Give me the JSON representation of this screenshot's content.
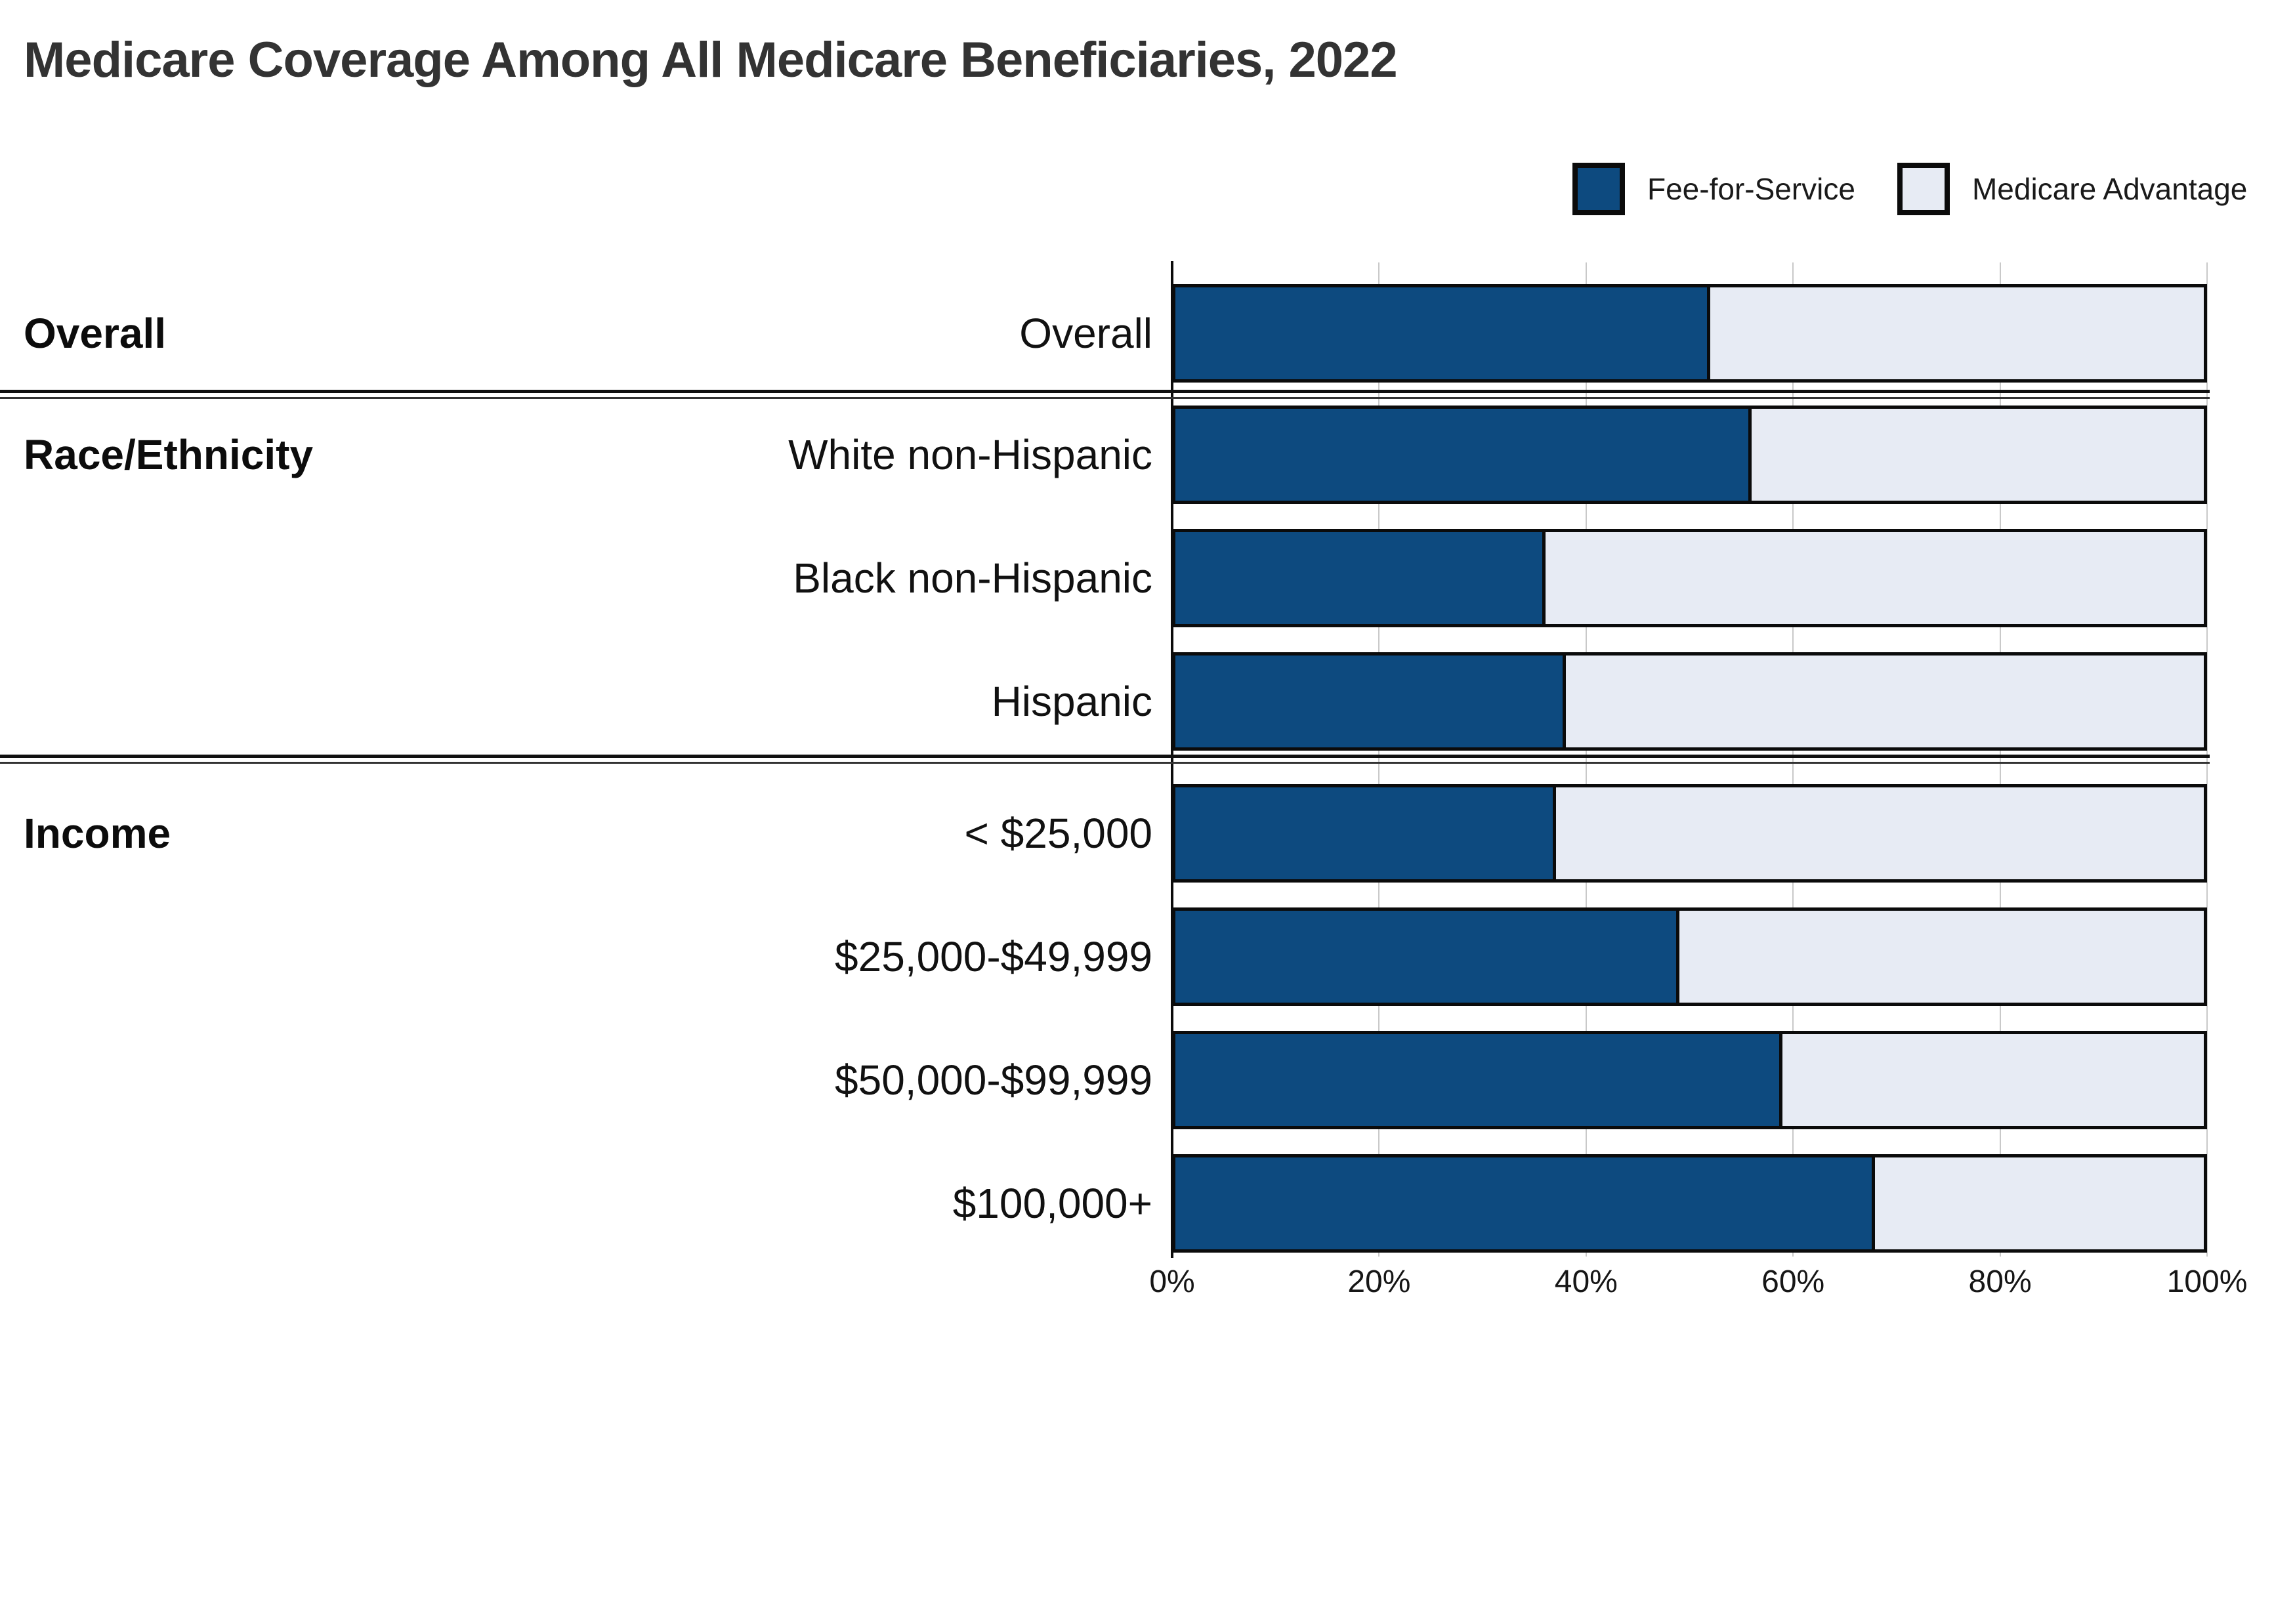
{
  "title": "Medicare Coverage Among All Medicare Beneficiaries, 2022",
  "legend": [
    {
      "label": "Fee-for-Service",
      "color": "#0D4A7F"
    },
    {
      "label": "Medicare Advantage",
      "color": "#E7EBF4"
    }
  ],
  "colors": {
    "fee_for_service": "#0D4A7F",
    "medicare_advantage": "#E7EBF4",
    "bar_border": "#0B0B0B",
    "gridline": "#C9C9C9",
    "title_text": "#333333"
  },
  "chart_data": {
    "type": "bar",
    "orientation": "horizontal",
    "stacked": true,
    "title": "Medicare Coverage Among All Medicare Beneficiaries, 2022",
    "unit": "%",
    "xlim": [
      0,
      100
    ],
    "x_tick_labels": [
      "0%",
      "20%",
      "40%",
      "60%",
      "80%",
      "100%"
    ],
    "grid": "vertical",
    "legend_position": "top-right",
    "categories": [
      "Overall",
      "White non-Hispanic",
      "Black non-Hispanic",
      "Hispanic",
      "< $25,000",
      "$25,000-$49,999",
      "$50,000-$99,999",
      "$100,000+"
    ],
    "series": [
      {
        "name": "Fee-for-Service",
        "values": [
          52,
          56,
          36,
          38,
          37,
          49,
          59,
          68
        ]
      },
      {
        "name": "Medicare Advantage",
        "values": [
          48,
          44,
          64,
          62,
          63,
          51,
          41,
          32
        ]
      }
    ],
    "sections": [
      {
        "header": "Overall",
        "rows": [
          {
            "label": "Overall",
            "fee_for_service": 52,
            "medicare_advantage": 48
          }
        ]
      },
      {
        "header": "Race/Ethnicity",
        "rows": [
          {
            "label": "White non-Hispanic",
            "fee_for_service": 56,
            "medicare_advantage": 44
          },
          {
            "label": "Black non-Hispanic",
            "fee_for_service": 36,
            "medicare_advantage": 64
          },
          {
            "label": "Hispanic",
            "fee_for_service": 38,
            "medicare_advantage": 62
          }
        ]
      },
      {
        "header": "Income",
        "rows": [
          {
            "label": "< $25,000",
            "fee_for_service": 37,
            "medicare_advantage": 63
          },
          {
            "label": "$25,000-$49,999",
            "fee_for_service": 49,
            "medicare_advantage": 51
          },
          {
            "label": "$50,000-$99,999",
            "fee_for_service": 59,
            "medicare_advantage": 41
          },
          {
            "label": "$100,000+",
            "fee_for_service": 68,
            "medicare_advantage": 32
          }
        ]
      }
    ]
  }
}
